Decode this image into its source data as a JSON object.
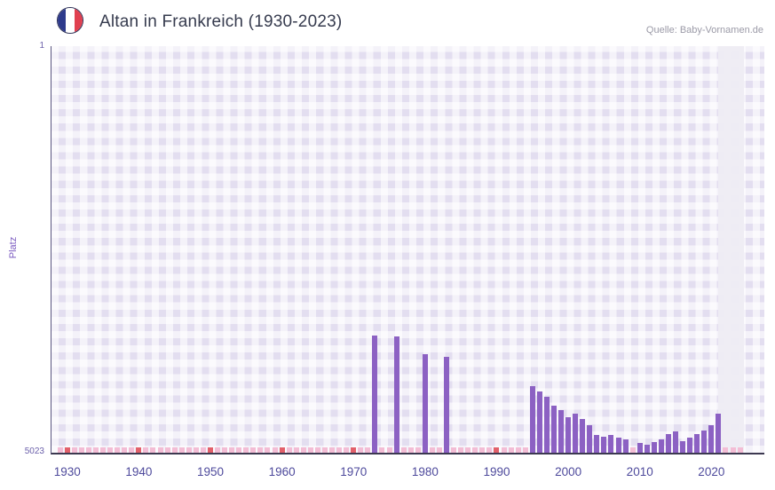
{
  "header": {
    "title": "Altan in Frankreich (1930-2023)",
    "source": "Quelle: Baby-Vornamen.de",
    "flag_icon": {
      "label": "france-flag",
      "blue": "#2d3a8c",
      "white": "#ffffff",
      "red": "#e04050"
    }
  },
  "chart_data": {
    "type": "bar",
    "title": "Altan in Frankreich (1930-2023)",
    "xlabel": "",
    "ylabel": "Platz",
    "y_axis": {
      "min": 1,
      "max": 5023,
      "inverted": true,
      "top_label": "1",
      "bottom_label": "5023"
    },
    "x_ticks": [
      1930,
      1940,
      1950,
      1960,
      1970,
      1980,
      1990,
      2000,
      2010,
      2020
    ],
    "x_range": [
      1927.8,
      2027.4
    ],
    "grid": true,
    "legend": false,
    "bar_color": "#8c61c3",
    "highlight_band": {
      "from": 2020.9,
      "to": 2024.6,
      "color": "rgba(238,236,243,0.95)"
    },
    "unranked_marker": {
      "from": 1929,
      "to": 2024,
      "height": 6,
      "color": "#f3bdd5",
      "decade_color": "#e2606a"
    },
    "series": [
      {
        "year": 1973,
        "rank": 3575
      },
      {
        "year": 1976,
        "rank": 3590
      },
      {
        "year": 1980,
        "rank": 3810
      },
      {
        "year": 1983,
        "rank": 3840
      },
      {
        "year": 1995,
        "rank": 4200
      },
      {
        "year": 1996,
        "rank": 4270
      },
      {
        "year": 1997,
        "rank": 4330
      },
      {
        "year": 1998,
        "rank": 4440
      },
      {
        "year": 1999,
        "rank": 4500
      },
      {
        "year": 2000,
        "rank": 4580
      },
      {
        "year": 2001,
        "rank": 4540
      },
      {
        "year": 2002,
        "rank": 4610
      },
      {
        "year": 2003,
        "rank": 4680
      },
      {
        "year": 2004,
        "rank": 4800
      },
      {
        "year": 2005,
        "rank": 4830
      },
      {
        "year": 2006,
        "rank": 4800
      },
      {
        "year": 2007,
        "rank": 4840
      },
      {
        "year": 2008,
        "rank": 4860
      },
      {
        "year": 2010,
        "rank": 4900
      },
      {
        "year": 2011,
        "rank": 4920
      },
      {
        "year": 2012,
        "rank": 4890
      },
      {
        "year": 2013,
        "rank": 4860
      },
      {
        "year": 2014,
        "rank": 4790
      },
      {
        "year": 2015,
        "rank": 4760
      },
      {
        "year": 2016,
        "rank": 4880
      },
      {
        "year": 2017,
        "rank": 4840
      },
      {
        "year": 2018,
        "rank": 4790
      },
      {
        "year": 2019,
        "rank": 4750
      },
      {
        "year": 2020,
        "rank": 4680
      },
      {
        "year": 2021,
        "rank": 4540
      }
    ]
  }
}
